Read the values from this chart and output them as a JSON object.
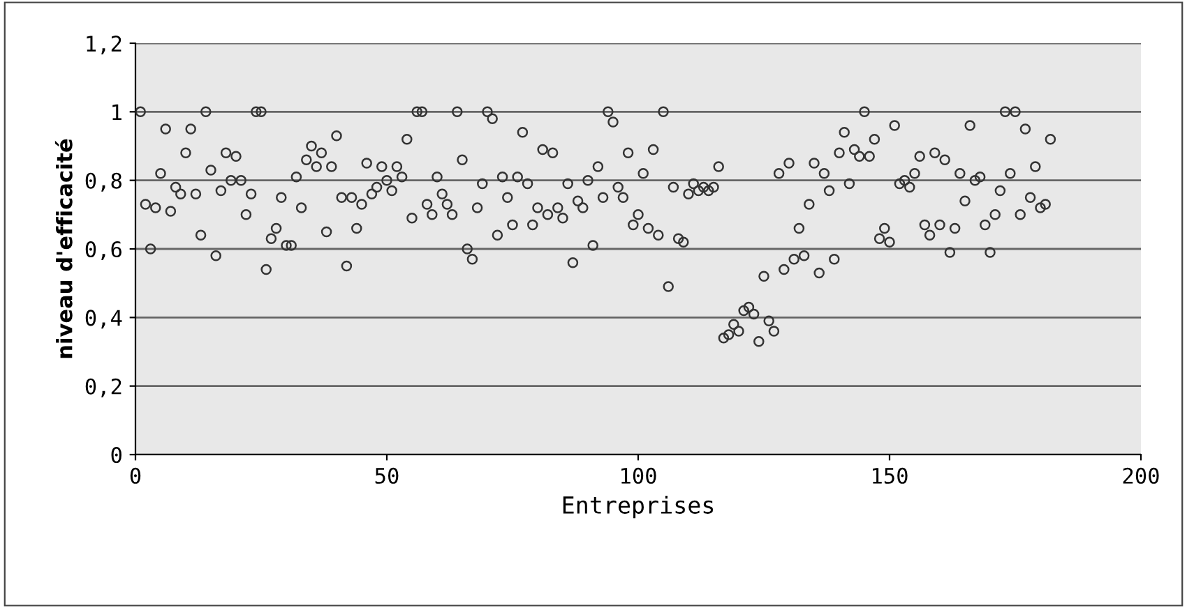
{
  "chart_data": {
    "type": "scatter",
    "xlabel": "Entreprises",
    "ylabel": "niveau d'efficacité",
    "x": [
      1,
      2,
      3,
      4,
      5,
      6,
      7,
      8,
      9,
      10,
      11,
      12,
      13,
      14,
      15,
      16,
      17,
      18,
      19,
      20,
      21,
      22,
      23,
      24,
      25,
      26,
      27,
      28,
      29,
      30,
      31,
      32,
      33,
      34,
      35,
      36,
      37,
      38,
      39,
      40,
      41,
      42,
      43,
      44,
      45,
      46,
      47,
      48,
      49,
      50,
      51,
      52,
      53,
      54,
      55,
      56,
      57,
      58,
      59,
      60,
      61,
      62,
      63,
      64,
      65,
      66,
      67,
      68,
      69,
      70,
      71,
      72,
      73,
      74,
      75,
      76,
      77,
      78,
      79,
      80,
      81,
      82,
      83,
      84,
      85,
      86,
      87,
      88,
      89,
      90,
      91,
      92,
      93,
      94,
      95,
      96,
      97,
      98,
      99,
      100,
      101,
      102,
      103,
      104,
      105,
      106,
      107,
      108,
      109,
      110,
      111,
      112,
      113,
      114,
      115,
      116,
      117,
      118,
      119,
      120,
      121,
      122,
      123,
      124,
      125,
      126,
      127,
      128,
      129,
      130,
      131,
      132,
      133,
      134,
      135,
      136,
      137,
      138,
      139,
      140,
      141,
      142,
      143,
      144,
      145,
      146,
      147,
      148,
      149,
      150,
      151,
      152,
      153,
      154,
      155,
      156,
      157,
      158,
      159,
      160,
      161,
      162,
      163,
      164,
      165,
      166,
      167,
      168,
      169,
      170,
      171,
      172,
      173,
      174,
      175,
      176,
      177,
      178,
      179,
      180,
      181,
      182
    ],
    "series": [
      {
        "color": "#333333",
        "values": [
          1.0,
          0.73,
          0.6,
          0.72,
          0.82,
          0.95,
          0.71,
          0.78,
          0.76,
          0.88,
          0.95,
          0.76,
          0.64,
          1.0,
          0.83,
          0.58,
          0.77,
          0.88,
          0.8,
          0.87,
          0.8,
          0.7,
          0.76,
          1.0,
          1.0,
          0.54,
          0.63,
          0.66,
          0.75,
          0.61,
          0.61,
          0.81,
          0.72,
          0.86,
          0.9,
          0.84,
          0.88,
          0.65,
          0.84,
          0.93,
          0.75,
          0.55,
          0.75,
          0.66,
          0.73,
          0.85,
          0.76,
          0.78,
          0.84,
          0.8,
          0.77,
          0.84,
          0.81,
          0.92,
          0.69,
          1.0,
          1.0,
          0.73,
          0.7,
          0.81,
          0.76,
          0.73,
          0.7,
          1.0,
          0.86,
          0.6,
          0.57,
          0.72,
          0.79,
          1.0,
          0.98,
          0.64,
          0.81,
          0.75,
          0.67,
          0.81,
          0.94,
          0.79,
          0.67,
          0.72,
          0.89,
          0.7,
          0.88,
          0.72,
          0.69,
          0.79,
          0.56,
          0.74,
          0.72,
          0.8,
          0.61,
          0.84,
          0.75,
          1.0,
          0.97,
          0.78,
          0.75,
          0.88,
          0.67,
          0.7,
          0.82,
          0.66,
          0.89,
          0.64,
          1.0,
          0.49,
          0.78,
          0.63,
          0.62,
          0.76,
          0.79,
          0.77,
          0.78,
          0.77,
          0.78,
          0.84,
          0.34,
          0.35,
          0.38,
          0.36,
          0.42,
          0.43,
          0.41,
          0.33,
          0.52,
          0.39,
          0.36,
          0.82,
          0.54,
          0.85,
          0.57,
          0.66,
          0.58,
          0.73,
          0.85,
          0.53,
          0.82,
          0.77,
          0.57,
          0.88,
          0.94,
          0.79,
          0.89,
          0.87,
          1.0,
          0.87,
          0.92,
          0.63,
          0.66,
          0.62,
          0.96,
          0.79,
          0.8,
          0.78,
          0.82,
          0.87,
          0.67,
          0.64,
          0.88,
          0.67,
          0.86,
          0.59,
          0.66,
          0.82,
          0.74,
          0.96,
          0.8,
          0.81,
          0.67,
          0.59,
          0.7,
          0.77,
          1.0,
          0.82,
          1.0,
          0.7,
          0.95,
          0.75,
          0.84,
          0.72,
          0.73,
          0.92
        ]
      }
    ],
    "xlim": [
      0,
      200
    ],
    "xticks": [
      0,
      50,
      100,
      150,
      200
    ],
    "ylim": [
      0,
      1.2
    ],
    "yticks": [
      0,
      {
        "value": 0.2,
        "label": "0,2"
      },
      {
        "value": 0.4,
        "label": "0,4"
      },
      {
        "value": 0.6,
        "label": "0,6"
      },
      {
        "value": 0.8,
        "label": "0,8"
      },
      1,
      {
        "value": 1.2,
        "label": "1,2"
      }
    ],
    "grid": "y",
    "marker": "circle",
    "legend": false
  }
}
